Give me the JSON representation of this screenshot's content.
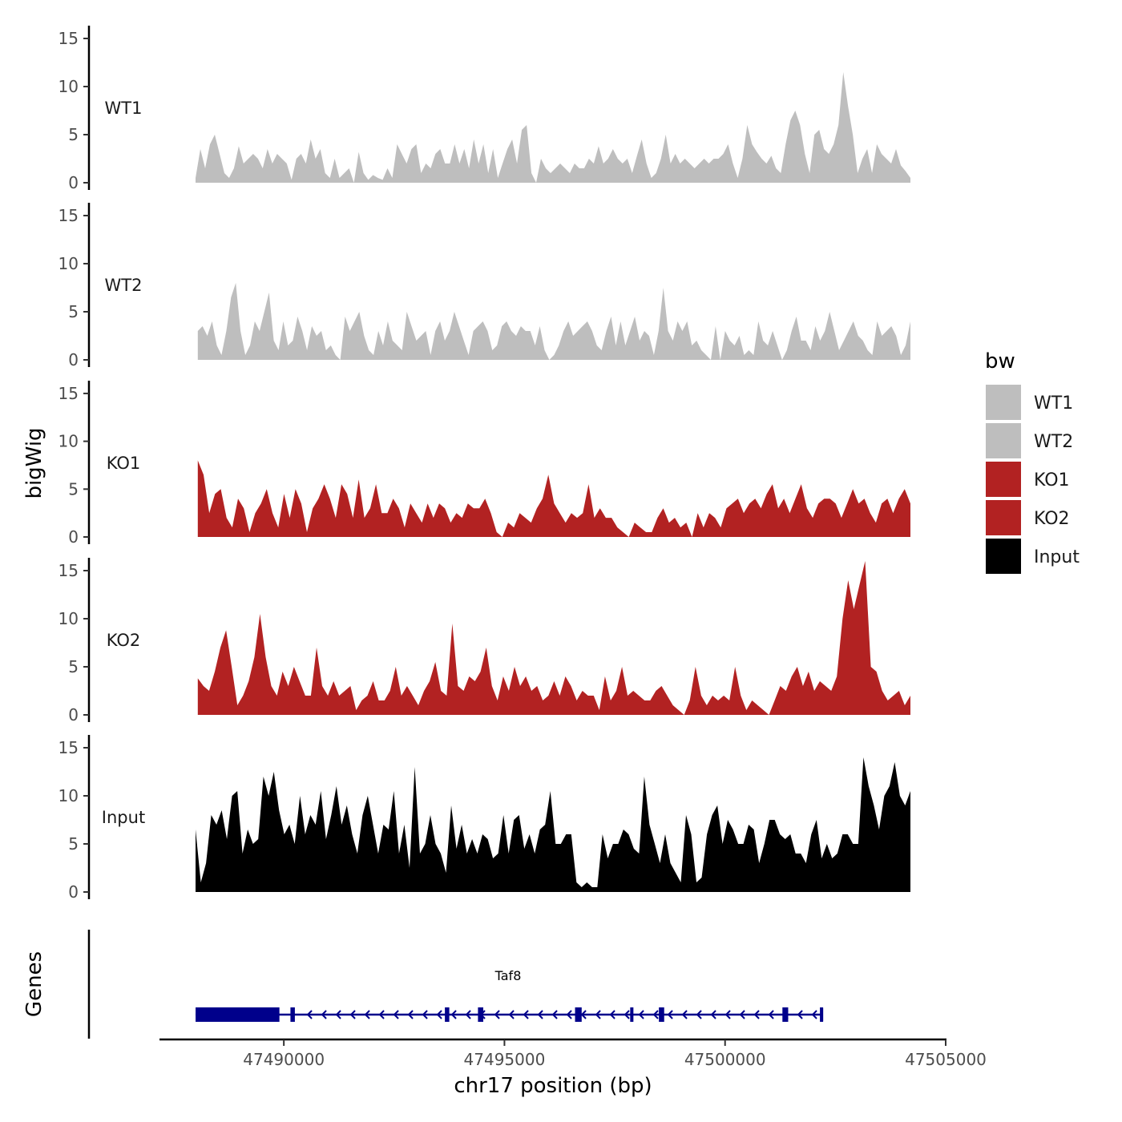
{
  "chart_data": {
    "type": "area",
    "chromosome": "chr17",
    "xlabel": "chr17 position (bp)",
    "ylabel_tracks": "bigWig",
    "ylabel_genes": "Genes",
    "xlim": [
      47487200,
      47505000
    ],
    "x_ticks": [
      47490000,
      47495000,
      47500000,
      47505000
    ],
    "x_tick_labels": [
      "47490000",
      "47495000",
      "47500000",
      "47505000"
    ],
    "ylim": [
      0,
      16
    ],
    "y_ticks": [
      0,
      5,
      10,
      15
    ],
    "y_tick_labels": [
      "0",
      "5",
      "10",
      "15"
    ],
    "legend": {
      "title": "bw",
      "position": "right",
      "entries": [
        {
          "label": "WT1",
          "color": "#bebebe"
        },
        {
          "label": "WT2",
          "color": "#bebebe"
        },
        {
          "label": "KO1",
          "color": "#b22222"
        },
        {
          "label": "KO2",
          "color": "#b22222"
        },
        {
          "label": "Input",
          "color": "#000000"
        }
      ]
    },
    "series": [
      {
        "name": "WT1",
        "color": "#bebebe",
        "x_start": 47488000,
        "x_end": 47504200,
        "values": [
          0.5,
          3.5,
          1.5,
          4,
          5,
          3,
          1,
          0.5,
          1.5,
          3.8,
          2,
          2.5,
          3,
          2.5,
          1.5,
          3.5,
          2,
          3,
          2.5,
          2,
          0.3,
          2.5,
          3,
          2,
          4.5,
          2.5,
          3.5,
          1,
          0.5,
          2.5,
          0.5,
          1,
          1.5,
          0,
          3.2,
          1,
          0.3,
          0.8,
          0.5,
          0.3,
          1.5,
          0.5,
          4,
          3,
          2,
          3.5,
          4,
          1,
          2,
          1.5,
          3,
          3.5,
          2,
          2,
          4,
          2,
          3.5,
          1.5,
          4.5,
          2,
          4,
          1,
          3.5,
          0.5,
          2,
          3.5,
          4.5,
          2,
          5.5,
          6,
          1,
          0,
          2.5,
          1.5,
          1,
          1.5,
          2,
          1.5,
          1,
          2,
          1.5,
          1.5,
          2.5,
          2,
          3.8,
          2,
          2.5,
          3.5,
          2.5,
          2,
          2.5,
          1,
          2.8,
          4.5,
          2,
          0.5,
          1,
          2.5,
          5,
          2,
          3,
          2,
          2.5,
          2,
          1.5,
          2,
          2.5,
          2,
          2.5,
          2.5,
          3,
          4,
          2,
          0.5,
          2.5,
          6,
          4,
          3.2,
          2.5,
          2,
          2.8,
          1.5,
          1,
          4,
          6.5,
          7.5,
          6,
          3,
          1,
          5,
          5.5,
          3.5,
          3,
          4,
          6,
          11.5,
          8,
          5,
          1,
          2.5,
          3.5,
          1,
          4,
          3,
          2.5,
          2,
          3.5,
          1.8,
          1.2,
          0.5
        ]
      },
      {
        "name": "WT2",
        "color": "#bebebe",
        "x_start": 47488050,
        "x_end": 47504200,
        "values": [
          3,
          3.5,
          2.5,
          4,
          1.5,
          0.5,
          3,
          6.5,
          8,
          3,
          0.5,
          1.5,
          4,
          3,
          5,
          7,
          2,
          1,
          4,
          1.5,
          2,
          4.5,
          3,
          1,
          3.5,
          2.5,
          3,
          1,
          1.5,
          0.5,
          0,
          4.5,
          3,
          4,
          5,
          2.5,
          1,
          0.5,
          3,
          1.5,
          4,
          2,
          1.5,
          1,
          5,
          3.5,
          2,
          2.5,
          3,
          0.5,
          3,
          4,
          2,
          3,
          5,
          3.5,
          2,
          0.5,
          3,
          3.5,
          4,
          3,
          1,
          1.5,
          3.5,
          4,
          3,
          2.5,
          3.5,
          3,
          3,
          1.5,
          3.5,
          1,
          0,
          0.5,
          1.5,
          3,
          4,
          2.5,
          3,
          3.5,
          4,
          3,
          1.5,
          1,
          3,
          4.5,
          1.5,
          4,
          1.5,
          3,
          4.5,
          2,
          3,
          2.5,
          0.5,
          3,
          7.5,
          3,
          2,
          4,
          3,
          4,
          1.5,
          2,
          1,
          0.5,
          0,
          3.5,
          0,
          3,
          2,
          1.5,
          2.5,
          0.5,
          1,
          0.5,
          4,
          2,
          1.5,
          3,
          1.5,
          0,
          1,
          3,
          4.5,
          2,
          2,
          1,
          3.5,
          2,
          3,
          5,
          3,
          1,
          2,
          3,
          4,
          2.5,
          2,
          1,
          0.5,
          4,
          2.5,
          3,
          3.5,
          2.5,
          0.5,
          1.5,
          4
        ]
      },
      {
        "name": "KO1",
        "color": "#b22222",
        "x_start": 47488050,
        "x_end": 47504200,
        "values": [
          8,
          6.5,
          2.5,
          4.5,
          5,
          2,
          1,
          4,
          3,
          0.5,
          2.5,
          3.5,
          5,
          2.5,
          1,
          4.5,
          2,
          5,
          3.5,
          0.5,
          3,
          4,
          5.5,
          4,
          2,
          5.5,
          4.5,
          2,
          6,
          2,
          3,
          5.5,
          2.5,
          2.5,
          4,
          3,
          1,
          3.5,
          2.5,
          1.5,
          3.5,
          2,
          3.5,
          3,
          1.5,
          2.5,
          2,
          3.5,
          3,
          3,
          4,
          2.5,
          0.5,
          0,
          1.5,
          1,
          2.5,
          2,
          1.5,
          3,
          4,
          6.5,
          3.5,
          2.5,
          1.5,
          2.5,
          2,
          2.5,
          5.5,
          2,
          3,
          2,
          2,
          1,
          0.5,
          0,
          1.5,
          1,
          0.5,
          0.5,
          2,
          3,
          1.5,
          2,
          1,
          1.5,
          0,
          2.5,
          1,
          2.5,
          2,
          1,
          3,
          3.5,
          4,
          2.5,
          3.5,
          4,
          3,
          4.5,
          5.5,
          3,
          4,
          2.5,
          4,
          5.5,
          3,
          2,
          3.5,
          4,
          4,
          3.5,
          2,
          3.5,
          5,
          3.5,
          4,
          2.5,
          1.5,
          3.5,
          4,
          2.5,
          4,
          5,
          3.5
        ]
      },
      {
        "name": "KO2",
        "color": "#b22222",
        "x_start": 47488050,
        "x_end": 47504200,
        "values": [
          3.8,
          3,
          2.5,
          4.5,
          7,
          8.8,
          5,
          1,
          2,
          3.5,
          6,
          10.5,
          6,
          3,
          2,
          4.5,
          3,
          5,
          3.5,
          2,
          2,
          7,
          3,
          2,
          3.5,
          2,
          2.5,
          3,
          0.5,
          1.5,
          2,
          3.5,
          1.5,
          1.5,
          2.5,
          5,
          2,
          3,
          2,
          1,
          2.5,
          3.5,
          5.5,
          2.5,
          2,
          9.5,
          3,
          2.5,
          4,
          3.5,
          4.5,
          7,
          3,
          1.5,
          4,
          2.5,
          5,
          3,
          4,
          2.5,
          3,
          1.5,
          2,
          3.5,
          2,
          4,
          3,
          1.5,
          2.5,
          2,
          2,
          0.5,
          4,
          1.5,
          2.5,
          5,
          2,
          2.5,
          2,
          1.5,
          1.5,
          2.5,
          3,
          2,
          1,
          0.5,
          0,
          1.5,
          5,
          2,
          1,
          2,
          1.5,
          2,
          1.5,
          5,
          2,
          0.5,
          1.5,
          1,
          0.5,
          0,
          1.5,
          3,
          2.5,
          4,
          5,
          3,
          4.5,
          2.5,
          3.5,
          3,
          2.5,
          4,
          10,
          14,
          11,
          13.5,
          16,
          5,
          4.5,
          2.5,
          1.5,
          2,
          2.5,
          1,
          2
        ]
      },
      {
        "name": "Input",
        "color": "#000000",
        "x_start": 47488000,
        "x_end": 47504200,
        "values": [
          6.5,
          1,
          3,
          8,
          7,
          8.5,
          5.5,
          10,
          10.5,
          4,
          6.5,
          5,
          5.5,
          12,
          10,
          12.5,
          8.5,
          6,
          7,
          5,
          10,
          6,
          8,
          7,
          10.5,
          5.5,
          8,
          11,
          7,
          9,
          6,
          4,
          8,
          10,
          7,
          4,
          7,
          6.5,
          10.5,
          4,
          7,
          2.5,
          13,
          4,
          5,
          8,
          5,
          4,
          2,
          9,
          4.5,
          7,
          4,
          5.5,
          4,
          6,
          5.5,
          3.5,
          4,
          8,
          4,
          7.5,
          8,
          4.5,
          6,
          4,
          6.5,
          7,
          10.5,
          5,
          5,
          6,
          6,
          1,
          0.5,
          1,
          0.5,
          0.5,
          6,
          3.5,
          5,
          5,
          6.5,
          6,
          4.5,
          4,
          12,
          7,
          5,
          3,
          6,
          3,
          2,
          1,
          8,
          6,
          1,
          1.5,
          6,
          8,
          9,
          5,
          7.5,
          6.5,
          5,
          5,
          7,
          6.5,
          3,
          5,
          7.5,
          7.5,
          6,
          5.5,
          6,
          4,
          4,
          3,
          6,
          7.5,
          3.5,
          5,
          3.5,
          4,
          6,
          6,
          5,
          5,
          14,
          11,
          9,
          6.5,
          10,
          11,
          13.5,
          10,
          9,
          10.5
        ]
      }
    ],
    "genes": [
      {
        "name": "Taf8",
        "strand": "-",
        "start": 47488000,
        "end": 47502200,
        "exons": [
          [
            47488000,
            47489900
          ],
          [
            47490150,
            47490250
          ],
          [
            47493650,
            47493750
          ],
          [
            47494400,
            47494520
          ],
          [
            47496600,
            47496750
          ],
          [
            47497850,
            47497900
          ],
          [
            47498500,
            47498620
          ],
          [
            47501300,
            47501430
          ],
          [
            47502150,
            47502200
          ]
        ]
      }
    ]
  }
}
